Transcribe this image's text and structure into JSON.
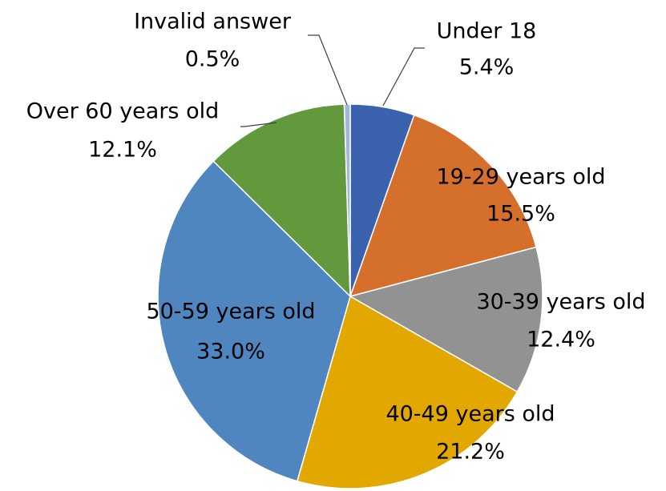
{
  "chart_data": {
    "type": "pie",
    "categories": [
      "Under 18",
      "19-29 years old",
      "30-39 years old",
      "40-49 years old",
      "50-59 years old",
      "Over 60 years old",
      "Invalid answer"
    ],
    "values": [
      5.4,
      15.5,
      12.4,
      21.2,
      33.0,
      12.1,
      0.5
    ],
    "value_labels": [
      "5.4%",
      "15.5%",
      "12.4%",
      "21.2%",
      "33.0%",
      "12.1%",
      "0.5%"
    ],
    "colors": [
      "#3a62ad",
      "#d4702c",
      "#929292",
      "#e3a800",
      "#4f86c0",
      "#62993c",
      "#a1b6e0"
    ]
  }
}
